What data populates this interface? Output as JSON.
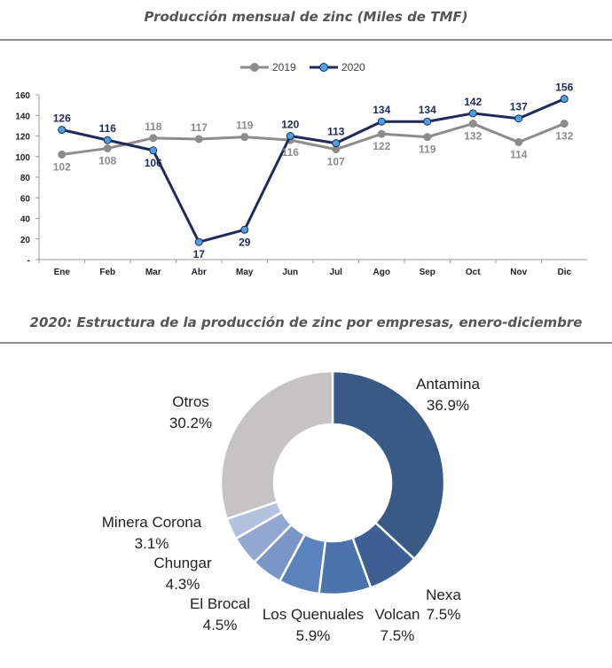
{
  "line_chart": {
    "title": "Producción mensual de zinc (Miles de TMF)"
  },
  "donut_chart": {
    "title": "2020: Estructura de la producción de zinc por empresas, enero-diciembre"
  },
  "chart_data": [
    {
      "type": "line",
      "title": "Producción mensual de zinc (Miles de TMF)",
      "categories": [
        "Ene",
        "Feb",
        "Mar",
        "Abr",
        "May",
        "Jun",
        "Jul",
        "Ago",
        "Sep",
        "Oct",
        "Nov",
        "Dic"
      ],
      "y_ticks": [
        "-",
        "20",
        "40",
        "60",
        "80",
        "100",
        "120",
        "140",
        "160"
      ],
      "ylim": [
        0,
        160
      ],
      "grid": false,
      "legend": "top-center",
      "series": [
        {
          "name": "2019",
          "color": "#8c8c8c",
          "values": [
            102,
            108,
            118,
            117,
            119,
            116,
            107,
            122,
            119,
            132,
            114,
            132
          ]
        },
        {
          "name": "2020",
          "color": "#1f2a5a",
          "marker_color": "#4aa3df",
          "values": [
            126,
            116,
            106,
            17,
            29,
            120,
            113,
            134,
            134,
            142,
            137,
            156
          ]
        }
      ]
    },
    {
      "type": "pie",
      "style": "donut",
      "title": "2020: Estructura de la producción de zinc por empresas, enero-diciembre",
      "slices": [
        {
          "label": "Antamina",
          "value": 36.9,
          "text": "36.9%",
          "color": "#3a5a86"
        },
        {
          "label": "Nexa",
          "value": 7.5,
          "text": "7.5%",
          "color": "#3e5f93"
        },
        {
          "label": "Volcan",
          "value": 7.5,
          "text": "7.5%",
          "color": "#4b73ad"
        },
        {
          "label": "Los Quenuales",
          "value": 5.9,
          "text": "5.9%",
          "color": "#5a82bd"
        },
        {
          "label": "El Brocal",
          "value": 4.5,
          "text": "4.5%",
          "color": "#7a96c6"
        },
        {
          "label": "Chungar",
          "value": 4.3,
          "text": "4.3%",
          "color": "#92a8d0"
        },
        {
          "label": "Minera Corona",
          "value": 3.1,
          "text": "3.1%",
          "color": "#b3c2df"
        },
        {
          "label": "Otros",
          "value": 30.2,
          "text": "30.2%",
          "color": "#c5c3c3"
        }
      ]
    }
  ]
}
